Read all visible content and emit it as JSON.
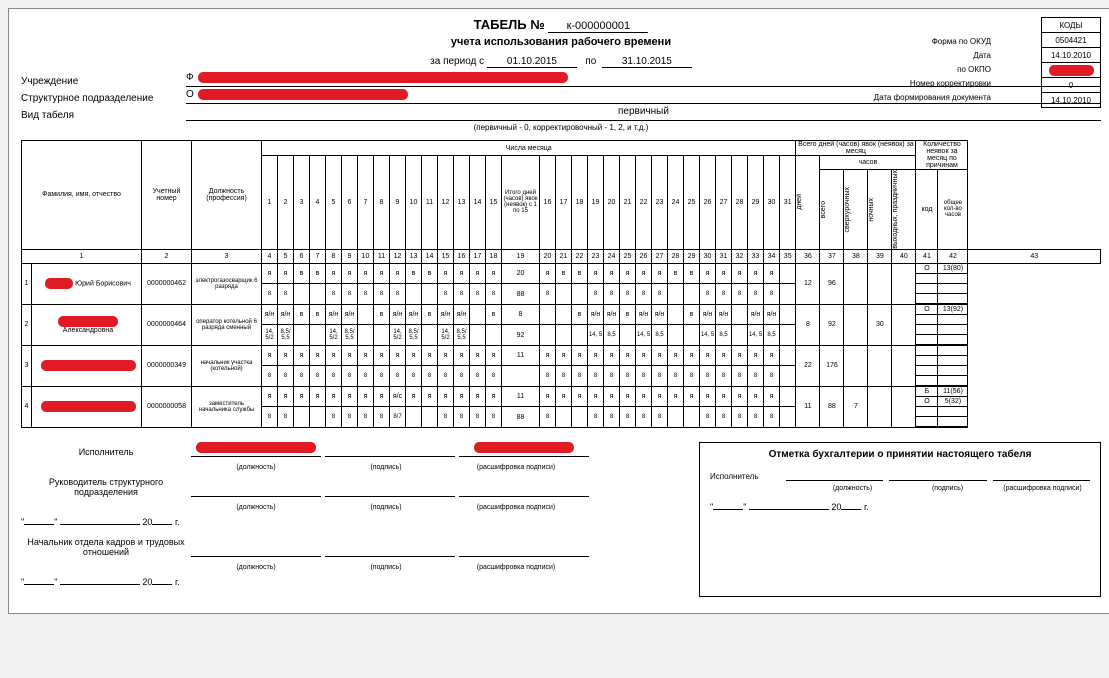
{
  "doc": {
    "title": "ТАБЕЛЬ №",
    "number": "к-000000001",
    "subtitle": "учета использования рабочего времени",
    "period_label": "за период с",
    "period_from": "01.10.2015",
    "period_to_label": "по",
    "period_to": "31.10.2015",
    "org_label": "Учреждение",
    "org_prefix": "Ф",
    "dept_label": "Структурное подразделение",
    "dept_prefix": "О",
    "kind_label": "Вид табеля",
    "kind_value": "первичный",
    "kind_note": "(первичный - 0, корректировочный - 1, 2, и т.д.)"
  },
  "codes": {
    "header": "КОДЫ",
    "labels": [
      "Форма по ОКУД",
      "Дата",
      "по ОКПО",
      "Номер корректировки",
      "Дата формирования документа"
    ],
    "values": [
      "0504421",
      "14.10.2010",
      "REDACTED",
      "0",
      "14.10.2010"
    ]
  },
  "table": {
    "headers": {
      "fio": "Фамилия, имя, отчество",
      "num": "Учетный номер",
      "pos": "Должность (профессия)",
      "days_header": "Числа месяца",
      "mid": "Итого дней (часов) явок (неявок) с 1 по 15",
      "totals_days_header": "Всего дней (часов) явок (неявок) за месяц",
      "hours_sub": "часов",
      "of_which": "из них",
      "col_days": "дней",
      "col_total": "всего",
      "col_overtime": "сверхурочных",
      "col_night": "ночных",
      "col_holiday": "выходных, праздничных",
      "abs_header": "Количество неявок за месяц по причинам",
      "col_code": "код",
      "col_abs_total": "общее кол-во часов"
    },
    "day_nums_1": [
      "1",
      "2",
      "3",
      "4",
      "5",
      "6",
      "7",
      "8",
      "9",
      "10",
      "11",
      "12",
      "13",
      "14",
      "15"
    ],
    "day_nums_2": [
      "16",
      "17",
      "18",
      "19",
      "20",
      "21",
      "22",
      "23",
      "24",
      "25",
      "26",
      "27",
      "28",
      "29",
      "30",
      "31"
    ],
    "colnum_row": [
      "1",
      "2",
      "3",
      "4",
      "5",
      "6",
      "7",
      "8",
      "9",
      "10",
      "11",
      "12",
      "13",
      "14",
      "15",
      "16",
      "17",
      "18",
      "19",
      "20",
      "21",
      "22",
      "23",
      "24",
      "25",
      "26",
      "27",
      "28",
      "29",
      "30",
      "31",
      "32",
      "33",
      "34",
      "35",
      "36",
      "37",
      "38",
      "39",
      "40",
      "41",
      "42",
      "43"
    ],
    "rows": [
      {
        "idx": "1",
        "name_suffix": "Юрий Борисович",
        "num": "0000000462",
        "pos": "электрогазосварщик 6 разряда",
        "r1": [
          "я",
          "я",
          "в",
          "в",
          "я",
          "я",
          "я",
          "я",
          "я",
          "в",
          "в",
          "я",
          "я",
          "я",
          "я",
          "20",
          "я",
          "в",
          "в",
          "я",
          "я",
          "я",
          "я",
          "я",
          "в",
          "в",
          "я",
          "я",
          "я",
          "я",
          "я",
          ""
        ],
        "r2": [
          "8",
          "8",
          "",
          "",
          "8",
          "8",
          "8",
          "8",
          "8",
          "",
          "",
          "8",
          "8",
          "8",
          "8",
          "88",
          "8",
          "",
          "",
          "8",
          "8",
          "8",
          "8",
          "8",
          "",
          "",
          "8",
          "8",
          "8",
          "8",
          "8",
          ""
        ],
        "tot": {
          "days": "12",
          "total": "96",
          "ot": "",
          "night": "",
          "hol": ""
        },
        "abs": [
          [
            "О",
            "13(80)"
          ]
        ]
      },
      {
        "idx": "2",
        "name_suffix": "Александровна",
        "num": "0000000464",
        "pos": "оператор котельной 6 разряда сменный",
        "r1": [
          "я/н",
          "я/н",
          "в",
          "в",
          "я/н",
          "я/н",
          "",
          "в",
          "я/н",
          "я/н",
          "в",
          "я/н",
          "я/н",
          "",
          "в",
          "8",
          "",
          "",
          "в",
          "я/н",
          "я/н",
          "в",
          "я/н",
          "я/н",
          "",
          "в",
          "я/н",
          "я/н",
          "",
          "я/н",
          "я/н",
          ""
        ],
        "r2": [
          "14, 5/2",
          "8,5/ 5,5",
          "",
          "",
          "14, 5/2",
          "8,5/ 5,5",
          "",
          "",
          "14, 5/2",
          "8,5/ 5,5",
          "",
          "14, 5/2",
          "8,5/ 5,5",
          "",
          "",
          "92",
          "",
          "",
          "",
          "14, 5",
          "8,5",
          "",
          "14, 5",
          "8,5",
          "",
          "",
          "14, 5",
          "8,5",
          "",
          "14, 5",
          "8,5",
          ""
        ],
        "tot": {
          "days": "8",
          "total": "92",
          "ot": "",
          "night": "30",
          "hol": ""
        },
        "abs": [
          [
            "О",
            "13(92)"
          ]
        ]
      },
      {
        "idx": "3",
        "name_suffix": "",
        "num": "0000000349",
        "pos": "начальник участка (котельной)",
        "r1": [
          "я",
          "я",
          "я",
          "я",
          "я",
          "я",
          "я",
          "я",
          "я",
          "я",
          "я",
          "я",
          "я",
          "я",
          "я",
          "11",
          "я",
          "я",
          "я",
          "я",
          "я",
          "я",
          "я",
          "я",
          "я",
          "я",
          "я",
          "я",
          "я",
          "я",
          "я",
          ""
        ],
        "r2": [
          "8",
          "8",
          "8",
          "8",
          "8",
          "8",
          "8",
          "8",
          "8",
          "8",
          "8",
          "8",
          "8",
          "8",
          "8",
          "",
          "8",
          "8",
          "8",
          "8",
          "8",
          "8",
          "8",
          "8",
          "8",
          "8",
          "8",
          "8",
          "8",
          "8",
          "8",
          ""
        ],
        "tot": {
          "days": "22",
          "total": "176",
          "ot": "",
          "night": "",
          "hol": ""
        },
        "abs": []
      },
      {
        "idx": "4",
        "name_suffix": "",
        "num": "0000000058",
        "pos": "заместитель начальника службы",
        "r1": [
          "я",
          "я",
          "я",
          "я",
          "я",
          "я",
          "я",
          "я",
          "я/с",
          "я",
          "я",
          "я",
          "я",
          "я",
          "я",
          "11",
          "я",
          "я",
          "я",
          "я",
          "я",
          "я",
          "я",
          "я",
          "я",
          "я",
          "я",
          "я",
          "я",
          "я",
          "я",
          ""
        ],
        "r2": [
          "8",
          "8",
          "",
          "",
          "8",
          "8",
          "8",
          "8",
          "8/7",
          "",
          "",
          "8",
          "8",
          "8",
          "8",
          "88",
          "8",
          "",
          "",
          "8",
          "8",
          "8",
          "8",
          "8",
          "",
          "",
          "8",
          "8",
          "8",
          "8",
          "8",
          ""
        ],
        "tot": {
          "days": "11",
          "total": "88",
          "ot": "7",
          "night": "",
          "hol": ""
        },
        "abs": [
          [
            "Б",
            "11(56)"
          ],
          [
            "О",
            "5(32)"
          ]
        ]
      }
    ]
  },
  "sigs": {
    "executor": "Исполнитель",
    "head": "Руководитель структурного подразделения",
    "hr": "Начальник отдела кадров и трудовых отношений",
    "pos": "(должность)",
    "sign": "(подпись)",
    "decode": "(расшифровка подписи)",
    "year_suffix": "г.",
    "acct_title": "Отметка бухгалтерии о принятии настоящего табеля",
    "acct_exec": "Исполнитель"
  },
  "colors": {
    "redact": "#e01b24"
  }
}
